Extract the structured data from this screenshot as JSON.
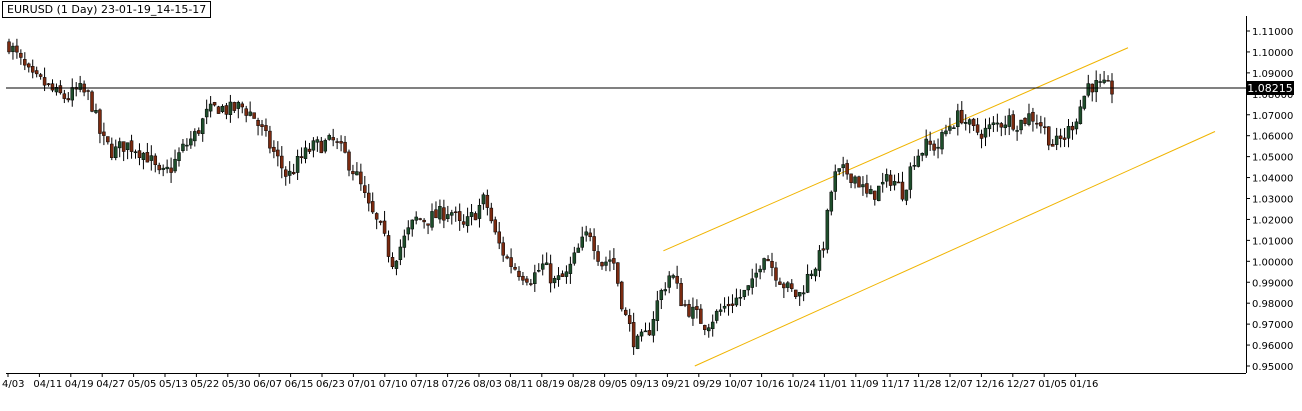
{
  "title": "EURUSD (1 Day) 23-01-19_14-15-17",
  "current_price_label": "1.08215",
  "colors": {
    "background": "#ffffff",
    "up": "#1e4d2b",
    "down": "#7a2a10",
    "wick": "#000000",
    "channel": "#f0b400",
    "price_line": "#000000"
  },
  "chart_data": {
    "type": "candlestick",
    "symbol": "EURUSD",
    "timeframe": "1 Day",
    "y_ticks": [
      "1.11000",
      "1.10000",
      "1.09000",
      "1.08000",
      "1.07000",
      "1.06000",
      "1.05000",
      "1.04000",
      "1.03000",
      "1.02000",
      "1.01000",
      "1.00000",
      "0.99000",
      "0.98000",
      "0.97000",
      "0.96000",
      "0.95000"
    ],
    "x_ticks": [
      "4/03",
      "04/11",
      "04/19",
      "04/27",
      "05/05",
      "05/13",
      "05/22",
      "05/30",
      "06/07",
      "06/15",
      "06/23",
      "07/01",
      "07/10",
      "07/18",
      "07/26",
      "08/03",
      "08/11",
      "08/19",
      "08/28",
      "09/05",
      "09/13",
      "09/21",
      "09/29",
      "10/07",
      "10/16",
      "10/24",
      "11/01",
      "11/09",
      "11/17",
      "11/28",
      "12/07",
      "12/16",
      "12/27",
      "01/05",
      "01/16"
    ],
    "current_price": 1.08215,
    "ylim": [
      0.9455,
      1.1135
    ],
    "close_path": [
      1.104,
      1.095,
      1.087,
      1.085,
      1.08,
      1.078,
      1.082,
      1.078,
      1.058,
      1.052,
      1.056,
      1.054,
      1.05,
      1.04,
      1.045,
      1.054,
      1.06,
      1.07,
      1.074,
      1.072,
      1.074,
      1.07,
      1.06,
      1.05,
      1.04,
      1.048,
      1.054,
      1.056,
      1.057,
      1.05,
      1.04,
      1.025,
      1.015,
      1.0,
      1.01,
      1.02,
      1.02,
      1.022,
      1.025,
      1.015,
      1.022,
      1.03,
      1.01,
      1.0,
      0.995,
      0.992,
      0.998,
      0.99,
      0.993,
      1.005,
      1.015,
      0.999,
      1.002,
      0.975,
      0.96,
      0.965,
      0.983,
      0.995,
      0.98,
      0.975,
      0.97,
      0.975,
      0.98,
      0.983,
      0.988,
      1.005,
      0.995,
      0.987,
      0.983,
      0.995,
      1.003,
      1.04,
      1.043,
      1.04,
      1.03,
      1.035,
      1.04,
      1.033,
      1.05,
      1.055,
      1.055,
      1.065,
      1.07,
      1.062,
      1.062,
      1.065,
      1.068,
      1.066,
      1.07,
      1.065,
      1.055,
      1.06,
      1.07,
      1.085,
      1.083,
      1.082
    ],
    "channel": {
      "upper": {
        "start": [
          "09/21",
          1.005
        ],
        "end": [
          "01/16+",
          1.102
        ]
      },
      "lower": {
        "start": [
          "09/29",
          0.95
        ],
        "end": [
          "01/16+",
          1.062
        ]
      }
    },
    "grid": false
  }
}
